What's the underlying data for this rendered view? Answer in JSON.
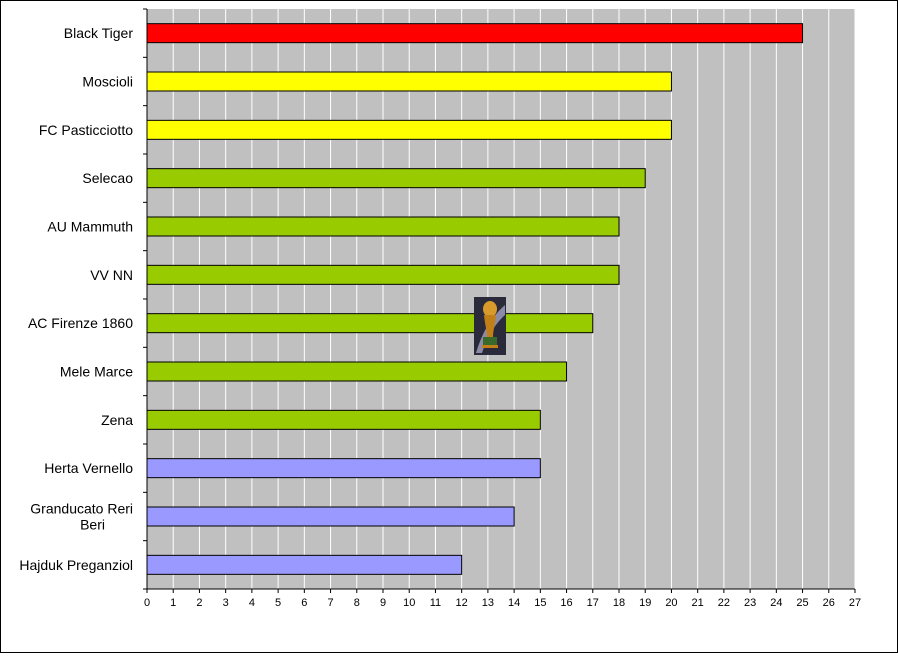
{
  "chart_data": {
    "type": "bar",
    "orientation": "horizontal",
    "categories": [
      "Black Tiger",
      "Moscioli",
      "FC Pasticciotto",
      "Selecao",
      "AU Mammuth",
      "VV NN",
      "AC Firenze 1860",
      "Mele Marce",
      "Zena",
      "Herta Vernello",
      "Granducato Reri Beri",
      "Hajduk Preganziol"
    ],
    "values": [
      25,
      20,
      20,
      19,
      18,
      18,
      17,
      16,
      15,
      15,
      14,
      12
    ],
    "bar_colors": [
      "#ff0000",
      "#ffff00",
      "#ffff00",
      "#99cc00",
      "#99cc00",
      "#99cc00",
      "#99cc00",
      "#99cc00",
      "#99cc00",
      "#9999ff",
      "#9999ff",
      "#9999ff"
    ],
    "xlim": [
      0,
      27
    ],
    "x_ticks": [
      "0",
      "1",
      "2",
      "3",
      "4",
      "5",
      "6",
      "7",
      "8",
      "9",
      "10",
      "11",
      "12",
      "13",
      "14",
      "15",
      "16",
      "17",
      "18",
      "19",
      "20",
      "21",
      "22",
      "23",
      "24",
      "25",
      "26",
      "27"
    ],
    "title": "",
    "xlabel": "",
    "ylabel": "",
    "grid": "vertical",
    "legend": "none",
    "plot_background": "#c0c0c0",
    "trophy_icon": "trophy-icon"
  }
}
